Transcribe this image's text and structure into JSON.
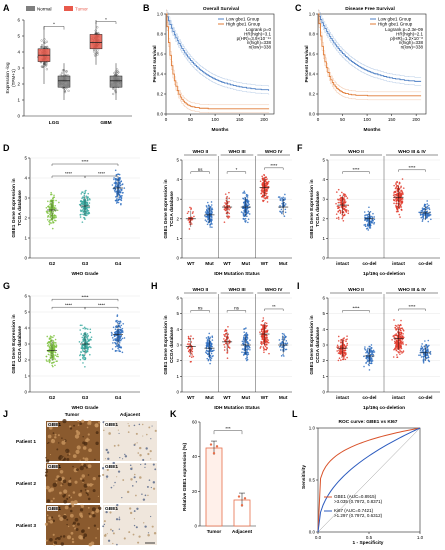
{
  "panel_letters": {
    "a": "A",
    "b": "B",
    "c": "C",
    "d": "D",
    "e": "E",
    "f": "F",
    "g": "G",
    "h": "H",
    "i": "I",
    "j": "J",
    "k": "K",
    "l": "L"
  },
  "colors": {
    "normal": "#7f7f7f",
    "tumor": "#e8594b",
    "low_km": "#4c7fc4",
    "high_km": "#e07b36",
    "green": "#7fc241",
    "teal": "#3aa9a0",
    "blue": "#2f6fc0",
    "red": "#e0392b",
    "bar": "#e66e4a"
  },
  "panelA": {
    "legend_normal": "Normal",
    "legend_tumor": "Tumor",
    "ylabel_line1": "Expression -log",
    "ylabel_line2": "(TPM+1)",
    "ticks": [
      "0",
      "1",
      "2",
      "3",
      "4",
      "5",
      "6"
    ],
    "groups": [
      "LGG",
      "GBM"
    ]
  },
  "panelB": {
    "title": "Overall Survival",
    "xlabel": "Months",
    "ylabel": "Percent survival",
    "legend": [
      "Low gbe1 Group",
      "High gbe1 Group"
    ],
    "stats": [
      "Logrank p=0",
      "HR(high)=3.1",
      "p(HR)=3.9×10⁻¹⁴",
      "n(high)=338",
      "n(low)=338"
    ],
    "xticks": [
      "0",
      "50",
      "100",
      "150",
      "200"
    ],
    "yticks": [
      "0.0",
      "0.2",
      "0.4",
      "0.6",
      "0.8",
      "1.0"
    ]
  },
  "panelC": {
    "title": "Disease Free Survival",
    "xlabel": "Months",
    "ylabel": "Percent survival",
    "legend": [
      "Low gbe1 Group",
      "High gbe1 Group"
    ],
    "stats": [
      "Logrank p=2.3e-09",
      "HR(high)=2.1",
      "p(HR)=1.2×10⁻⁸",
      "n(high)=338",
      "n(low)=338"
    ],
    "xticks": [
      "0",
      "50",
      "100",
      "150",
      "200"
    ],
    "yticks": [
      "0.0",
      "0.2",
      "0.4",
      "0.6",
      "0.8",
      "1.0"
    ]
  },
  "panelD": {
    "ylabel_line1": "GBE1 Gene Expression in",
    "ylabel_line2": "TCGA database",
    "xlabel": "WHO Grade",
    "groups": [
      "G2",
      "G3",
      "G4"
    ],
    "yticks": [
      "0",
      "1",
      "2",
      "3",
      "4",
      "5"
    ],
    "sig": [
      "****",
      "****",
      "****"
    ]
  },
  "panelE": {
    "ylabel_line1": "GBE1 Gene Expression in",
    "ylabel_line2": "TCGA database",
    "xlabel": "IDH Mutation Status",
    "headers": [
      "WHO II",
      "WHO III",
      "WHO IV"
    ],
    "groups": [
      "WT",
      "Mut"
    ],
    "yticks": [
      "0",
      "1",
      "2",
      "3",
      "4",
      "5"
    ],
    "sig": [
      "ns",
      "*",
      "****"
    ]
  },
  "panelF": {
    "ylabel_line1": "GBE1 Gene Expression in",
    "ylabel_line2": "TCGA database",
    "xlabel": "1p/19q co-deletion",
    "headers": [
      "WHO II",
      "WHO III & IV"
    ],
    "groups": [
      "intact",
      "co-del"
    ],
    "yticks": [
      "0",
      "1",
      "2",
      "3",
      "4",
      "5"
    ],
    "sig": [
      "****",
      "****"
    ]
  },
  "panelG": {
    "ylabel_line1": "GBE1 Gene Expression in",
    "ylabel_line2": "CCGA database",
    "xlabel": "WHO Grade",
    "groups": [
      "G2",
      "G3",
      "G4"
    ],
    "yticks": [
      "0",
      "1",
      "2",
      "3",
      "4",
      "5",
      "6"
    ],
    "sig": [
      "****",
      "****",
      "****"
    ]
  },
  "panelH": {
    "ylabel_line1": "GBE1 Gene Expression in",
    "ylabel_line2": "CCGA database",
    "xlabel": "IDH Mutation Status",
    "headers": [
      "WHO II",
      "WHO III",
      "WHO IV"
    ],
    "groups": [
      "WT",
      "Mut"
    ],
    "yticks": [
      "0",
      "1",
      "2",
      "3",
      "4",
      "5",
      "6"
    ],
    "sig": [
      "ns",
      "ns",
      "**"
    ]
  },
  "panelI": {
    "ylabel_line1": "GBE1 Gene Expression in",
    "ylabel_line2": "CCGA database",
    "xlabel": "1p/19q co-deletion",
    "headers": [
      "WHO II",
      "WHO III & IV"
    ],
    "groups": [
      "intact",
      "co-del"
    ],
    "yticks": [
      "0",
      "1",
      "2",
      "3",
      "4",
      "5",
      "6"
    ],
    "sig": [
      "****",
      "****"
    ]
  },
  "panelJ": {
    "col_headers": [
      "Tumor",
      "Adjacent"
    ],
    "rows": [
      "Patient 1",
      "Patient 2",
      "Patient 3"
    ],
    "tag": "GBE1"
  },
  "panelK": {
    "ylabel": "Relative GBE1 expression (%)",
    "groups": [
      "Tumor",
      "Adjacent"
    ],
    "yticks": [
      "0",
      "20",
      "40",
      "60"
    ],
    "sig": "***",
    "chart_data": {
      "type": "bar",
      "categories": [
        "Tumor",
        "Adjacent"
      ],
      "values": [
        45,
        15
      ],
      "ylim": [
        0,
        60
      ]
    }
  },
  "panelL": {
    "title": "ROC curve: GBE1 vs KI67",
    "xlabel": "1 - Specificity",
    "ylabel": "Sensitivity",
    "xticks": [
      "0.0",
      "0.5",
      "1.0"
    ],
    "yticks": [
      "0.0",
      "0.5",
      "1.0"
    ],
    "leg1_line1": "GBE1 (AUC=0.8915)",
    "leg1_line2": ">3.035 (0.7972, 0.8371)",
    "leg2_line1": "Ki67 (AUC=0.7421)",
    "leg2_line2": ">1.297 (0.7972, 0.6312)"
  }
}
